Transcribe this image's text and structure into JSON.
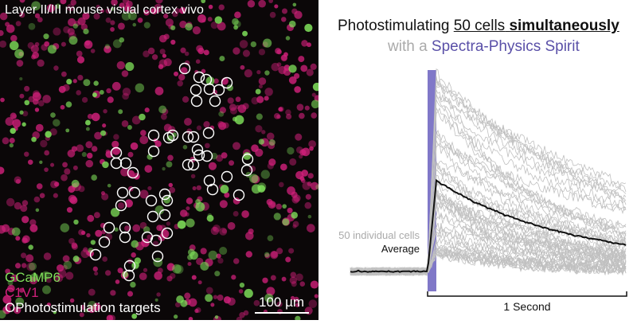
{
  "image": {
    "title": "Layer II/III mouse visual cortex vivo",
    "legend": {
      "green_label": "GCaMP6",
      "magenta_label": "C1V1",
      "circle_label": "OPhotostimulation targets"
    },
    "scale_bar": "100 µm",
    "colors": {
      "green": "#7fe05a",
      "magenta": "#d0207a",
      "circle": "#ffffff"
    }
  },
  "figure": {
    "title_plain": "Photostimulating ",
    "title_underlined_count": "50 cells",
    "title_underlined_bold": "simultaneously",
    "subtitle_prefix": "with a ",
    "subtitle_laser": "Spectra-Physics Spirit",
    "label_individual": "50 individual cells",
    "label_average": "Average",
    "time_scale": "1 Second",
    "n_cells": 50,
    "colors": {
      "stim": "#8078c8",
      "individual": "#c0c0c0",
      "average": "#111111",
      "laser_text": "#5a50a8"
    }
  }
}
